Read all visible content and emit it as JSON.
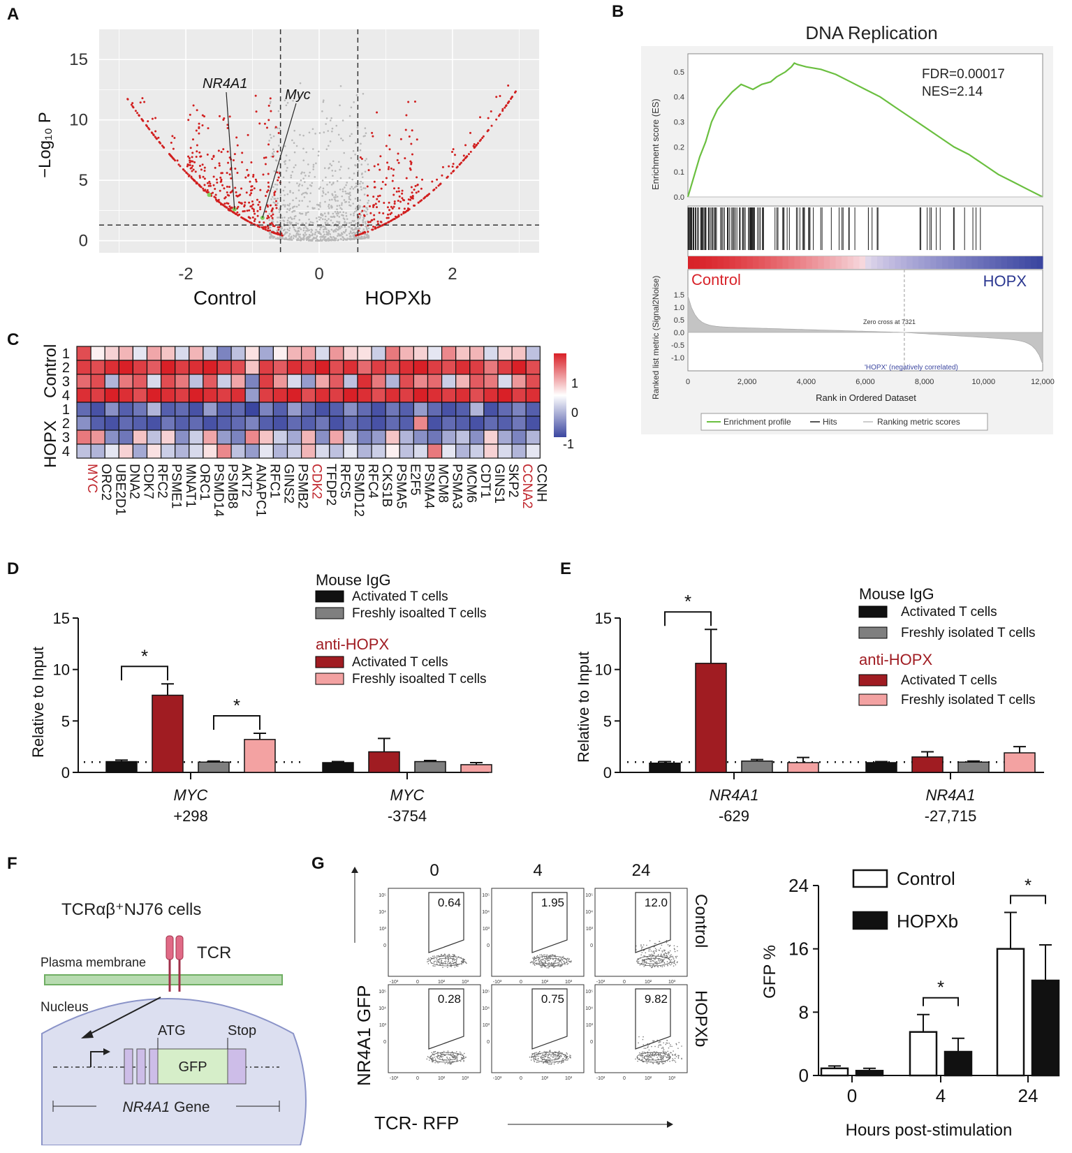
{
  "panel_letters": [
    "A",
    "B",
    "C",
    "D",
    "E",
    "F",
    "G"
  ],
  "colors": {
    "dark_red": "#a01c22",
    "pink": "#f3a2a2",
    "gray_bar": "#7f7f7f",
    "black": "#111111",
    "volcano_red": "#d11f1f",
    "volcano_gray": "#b8b8b8",
    "gsea_green": "#6abf3f",
    "heat_red": "#d92027",
    "heat_blue": "#3b46a0"
  },
  "chart_data": [
    {
      "panel": "A",
      "type": "scatter",
      "xlabel_left": "Control",
      "xlabel_right": "HOPXb",
      "ylabel": "−Log₁₀ P",
      "xticks": [
        "-2",
        "0",
        "2"
      ],
      "yticks": [
        "0",
        "5",
        "10",
        "15"
      ],
      "xlim": [
        -3.3,
        3.3
      ],
      "ylim": [
        -1,
        17.5
      ],
      "thresholds": {
        "x": [
          -0.58,
          0.58
        ],
        "y": 1.3
      },
      "labels": [
        {
          "text": "NR4A1",
          "x": -1.27,
          "y": 2.6
        },
        {
          "text": "Myc",
          "x": -0.85,
          "y": 1.9
        }
      ]
    },
    {
      "panel": "B",
      "type": "line",
      "title": "DNA Replication",
      "stats": [
        "FDR=0.00017",
        "NES=2.14"
      ],
      "ylabel_top": "Enrichment score (ES)",
      "ylabel_bottom": "Ranked list metric (Signal2Noise)",
      "xlabel": "Rank in Ordered Dataset",
      "es_yticks": [
        "0.0",
        "0.1",
        "0.2",
        "0.3",
        "0.4",
        "0.5"
      ],
      "metric_yticks": [
        "1.5",
        "1.0",
        "0.5",
        "0.0",
        "-0.5",
        "-1.0"
      ],
      "xticks": [
        "0",
        "2,000",
        "4,000",
        "6,000",
        "8,000",
        "10,000",
        "12,000"
      ],
      "x_max": 12000,
      "es_curve": {
        "x": [
          0,
          200,
          400,
          600,
          800,
          1000,
          1200,
          1500,
          1800,
          2000,
          2200,
          2500,
          2800,
          3000,
          3300,
          3500,
          3600,
          3700,
          4000,
          4500,
          5000,
          5500,
          6000,
          6500,
          7000,
          7500,
          8000,
          8500,
          9000,
          9500,
          10000,
          10500,
          11000,
          11500,
          12000
        ],
        "y": [
          0,
          0.08,
          0.16,
          0.22,
          0.3,
          0.35,
          0.38,
          0.42,
          0.45,
          0.44,
          0.43,
          0.45,
          0.46,
          0.48,
          0.5,
          0.52,
          0.535,
          0.53,
          0.52,
          0.51,
          0.49,
          0.46,
          0.43,
          0.4,
          0.36,
          0.32,
          0.28,
          0.24,
          0.2,
          0.17,
          0.13,
          0.09,
          0.06,
          0.03,
          0
        ]
      },
      "zero_cross_text": "Zero cross at 7321",
      "zero_cross": 7321,
      "hopx_corr_text": "'HOPX' (negatively correlated)",
      "left_group": "Control",
      "right_group": "HOPX",
      "legend": [
        "Enrichment profile",
        "Hits",
        "Ranking metric scores"
      ]
    },
    {
      "panel": "C",
      "type": "heatmap",
      "group_labels": [
        "Control",
        "HOPX"
      ],
      "row_labels": [
        "1",
        "2",
        "3",
        "4",
        "1",
        "2",
        "3",
        "4"
      ],
      "genes": [
        "MYC",
        "ORC2",
        "UBE2D1",
        "DNA2",
        "CDK7",
        "RFC2",
        "PSME1",
        "MNAT1",
        "ORC1",
        "PSMD14",
        "PSMB8",
        "AKT2",
        "ANAPC1",
        "RFC1",
        "GINS2",
        "PSMB2",
        "CDK2",
        "TFDP2",
        "RFC5",
        "PSMD12",
        "RFC4",
        "CKS1B",
        "PSMA5",
        "E2F5",
        "PSMA4",
        "MCM8",
        "PSMA3",
        "MCM6",
        "CDT1",
        "GINS1",
        "SKP2",
        "CCNA2",
        "CCNH"
      ],
      "highlight_genes": [
        "MYC",
        "CDK2",
        "CCNA2"
      ],
      "colorbar_ticks": [
        "1",
        "0",
        "-1"
      ],
      "values": [
        [
          1.2,
          0.1,
          0.3,
          0.5,
          -0.2,
          0.6,
          0.4,
          -0.3,
          0.5,
          -0.4,
          -1.0,
          -0.5,
          0.2,
          -0.7,
          0.1,
          0.5,
          0.6,
          -0.3,
          0.7,
          0.3,
          0.2,
          -0.4,
          0.9,
          0.5,
          0.3,
          -0.2,
          0.8,
          0.4,
          0.5,
          -0.3,
          0.3,
          0.4,
          -0.5
        ],
        [
          1.3,
          1.2,
          1.4,
          1.5,
          1.3,
          1.1,
          1.5,
          1.3,
          1.4,
          1.5,
          1.3,
          1.2,
          0.4,
          1.3,
          1.1,
          1.4,
          1.3,
          1.5,
          1.2,
          1.4,
          1.0,
          1.3,
          1.2,
          1.4,
          1.5,
          1.3,
          1.2,
          1.4,
          1.3,
          0.9,
          1.3,
          1.5,
          1.2
        ],
        [
          1.0,
          1.2,
          -0.6,
          0.9,
          1.1,
          -0.3,
          1.2,
          0.9,
          -0.5,
          1.1,
          -0.4,
          0.6,
          -1.0,
          1.3,
          0.7,
          -0.3,
          -0.8,
          0.6,
          1.1,
          -0.5,
          1.4,
          0.9,
          -0.6,
          1.2,
          0.8,
          1.0,
          -0.4,
          0.5,
          1.1,
          0.9,
          -0.3,
          0.7,
          1.2
        ],
        [
          1.4,
          1.3,
          1.5,
          1.4,
          1.2,
          1.5,
          1.4,
          1.3,
          1.5,
          1.4,
          1.3,
          1.4,
          -0.8,
          1.3,
          1.4,
          1.5,
          1.2,
          1.4,
          1.3,
          1.5,
          1.4,
          1.2,
          1.4,
          1.3,
          1.5,
          1.4,
          1.3,
          1.4,
          1.2,
          1.4,
          1.5,
          1.3,
          1.4
        ],
        [
          -1.2,
          -1.4,
          -0.9,
          -1.3,
          -1.1,
          -0.6,
          -1.3,
          -1.2,
          -1.4,
          -0.8,
          -1.3,
          -1.2,
          -1.5,
          -1.0,
          -1.3,
          -0.8,
          -1.2,
          -1.4,
          -1.3,
          -0.9,
          -1.2,
          -1.4,
          -1.1,
          -1.3,
          -0.8,
          -1.2,
          -1.4,
          -1.3,
          -0.6,
          -1.4,
          -1.2,
          -1.0,
          -1.3
        ],
        [
          -0.9,
          -1.3,
          -1.4,
          -1.2,
          -1.3,
          -1.4,
          -1.1,
          -1.3,
          -1.2,
          -1.4,
          -1.3,
          -1.2,
          -1.0,
          -1.3,
          -1.4,
          -1.2,
          -1.3,
          -1.1,
          -1.4,
          -1.2,
          -1.3,
          -1.4,
          -1.2,
          -1.3,
          0.8,
          -1.4,
          -1.2,
          -1.3,
          -1.4,
          -1.2,
          -1.3,
          -1.1,
          -1.4
        ],
        [
          0.9,
          0.7,
          -0.9,
          -1.1,
          0.4,
          -0.5,
          0.3,
          -0.9,
          -0.4,
          0.6,
          -0.8,
          -1.0,
          0.8,
          0.4,
          -0.4,
          -0.7,
          0.5,
          -0.9,
          0.6,
          -0.5,
          -1.0,
          -0.8,
          0.4,
          -0.6,
          -0.9,
          -1.1,
          -0.7,
          -0.5,
          -0.9,
          0.3,
          -0.7,
          -1.0,
          -0.6
        ],
        [
          -0.5,
          -0.6,
          -0.2,
          0.3,
          -0.7,
          0.2,
          -0.4,
          -0.6,
          -0.3,
          0.2,
          0.8,
          -0.5,
          -0.8,
          -0.2,
          -0.6,
          -0.4,
          0.5,
          -0.3,
          -0.5,
          -0.2,
          -0.6,
          -0.4,
          0.1,
          -0.5,
          -0.3,
          0.9,
          -0.2,
          -0.6,
          -0.4,
          0.3,
          -0.3,
          -0.6,
          -0.2
        ]
      ]
    },
    {
      "panel": "D",
      "type": "bar",
      "ylabel": "Relative to Input",
      "yticks": [
        "0",
        "5",
        "10",
        "15"
      ],
      "ylim": [
        0,
        15
      ],
      "groups": [
        {
          "gene": "MYC",
          "pos": "+298"
        },
        {
          "gene": "MYC",
          "pos": "-3754"
        }
      ],
      "series": [
        {
          "name": "Activated T cells",
          "antibody": "Mouse IgG",
          "values": [
            1.05,
            0.95
          ],
          "errors": [
            0.15,
            0.1
          ]
        },
        {
          "name": "Activated T cells",
          "antibody": "anti-HOPX",
          "values": [
            7.5,
            2.0
          ],
          "errors": [
            1.1,
            1.3
          ]
        },
        {
          "name": "Freshly isoalted T cells",
          "antibody": "Mouse IgG",
          "values": [
            1.0,
            1.05
          ],
          "errors": [
            0.1,
            0.1
          ]
        },
        {
          "name": "Freshly isoalted T cells",
          "antibody": "anti-HOPX",
          "values": [
            3.2,
            0.75
          ],
          "errors": [
            0.6,
            0.2
          ]
        }
      ],
      "legend_headers": [
        "Mouse IgG",
        "anti-HOPX"
      ],
      "significance": [
        {
          "label": "*",
          "from": [
            0,
            0
          ],
          "to": [
            0,
            1
          ]
        },
        {
          "label": "*",
          "from": [
            0,
            2
          ],
          "to": [
            0,
            3
          ]
        }
      ]
    },
    {
      "panel": "E",
      "type": "bar",
      "ylabel": "Relative to Input",
      "yticks": [
        "0",
        "5",
        "10",
        "15"
      ],
      "ylim": [
        0,
        15
      ],
      "groups": [
        {
          "gene": "NR4A1",
          "pos": "-629"
        },
        {
          "gene": "NR4A1",
          "pos": "-27,715"
        }
      ],
      "series": [
        {
          "name": "Activated T cells",
          "antibody": "Mouse IgG",
          "values": [
            0.9,
            0.95
          ],
          "errors": [
            0.15,
            0.1
          ]
        },
        {
          "name": "Activated T cells",
          "antibody": "anti-HOPX",
          "values": [
            10.6,
            1.5
          ],
          "errors": [
            3.3,
            0.5
          ]
        },
        {
          "name": "Freshly isolated T cells",
          "antibody": "Mouse IgG",
          "values": [
            1.1,
            1.0
          ],
          "errors": [
            0.15,
            0.1
          ]
        },
        {
          "name": "Freshly isolated T cells",
          "antibody": "anti-HOPX",
          "values": [
            0.95,
            1.9
          ],
          "errors": [
            0.5,
            0.6
          ]
        }
      ],
      "legend_headers": [
        "Mouse IgG",
        "anti-HOPX"
      ],
      "significance": [
        {
          "label": "*",
          "from": [
            0,
            0
          ],
          "to": [
            0,
            1
          ]
        }
      ]
    },
    {
      "panel": "G",
      "type": "bar",
      "ylabel": "GFP %",
      "xlabel": "Hours post-stimulation",
      "categories": [
        "0",
        "4",
        "24"
      ],
      "yticks": [
        "0",
        "8",
        "16",
        "24"
      ],
      "ylim": [
        0,
        24
      ],
      "series": [
        {
          "name": "Control",
          "values": [
            0.9,
            5.5,
            16.0
          ],
          "errors": [
            0.3,
            2.2,
            4.6
          ]
        },
        {
          "name": "HOPXb",
          "values": [
            0.6,
            3.0,
            12.0
          ],
          "errors": [
            0.3,
            1.7,
            4.5
          ]
        }
      ],
      "significance": [
        {
          "label": "*",
          "category": "4"
        },
        {
          "label": "*",
          "category": "24"
        }
      ]
    }
  ],
  "flow": {
    "timepoints": [
      "0",
      "4",
      "24"
    ],
    "row_labels": [
      "Control",
      "HOPXb"
    ],
    "gates": [
      [
        "0.64",
        "1.95",
        "12.0"
      ],
      [
        "0.28",
        "0.75",
        "9.82"
      ]
    ],
    "ylabel": "NR4A1 GFP",
    "xlabel": "TCR- RFP",
    "tick_labels": [
      "10⁵",
      "10⁴",
      "10³",
      "0",
      "-10³",
      "10²",
      "10³"
    ]
  },
  "diagram": {
    "title": "TCRαβ⁺NJ76 cells",
    "membrane_label": "Plasma membrane",
    "tcr_label": "TCR",
    "nucleus_label": "Nucleus",
    "atg_label": "ATG",
    "stop_label": "Stop",
    "gfp_label": "GFP",
    "gene_label": "NR4A1",
    "gene_suffix": "Gene"
  }
}
